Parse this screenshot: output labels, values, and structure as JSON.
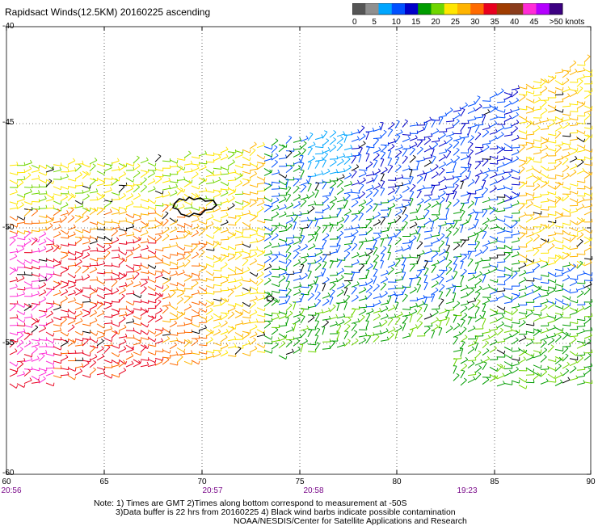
{
  "title": "Rapidsact Winds(12.5KM) 20160225 ascending",
  "colorbar": {
    "colors": [
      "#555555",
      "#8f8f8f",
      "#00a6ff",
      "#0050ff",
      "#0000c8",
      "#009c00",
      "#6fd600",
      "#ffe600",
      "#ffb400",
      "#ff6a00",
      "#e8001e",
      "#a03c00",
      "#8a3c1c",
      "#ff2cd6",
      "#b400ff",
      "#3c0082"
    ],
    "labels": [
      "0",
      "5",
      "10",
      "15",
      "20",
      "25",
      "30",
      "35",
      "40",
      "45",
      ">50 knots"
    ]
  },
  "axes": {
    "x_ticks": [
      "60",
      "65",
      "70",
      "75",
      "80",
      "85",
      "90"
    ],
    "y_ticks": [
      "-40",
      "-45",
      "-50",
      "-55",
      "-60"
    ],
    "time_labels": [
      "20:56",
      "20:57",
      "20:58",
      "19:23"
    ]
  },
  "notes": {
    "line1": "Note: 1) Times are GMT 2)Times along bottom correspond to measurement at -50S",
    "line2": "3)Data buffer is 22 hrs from 20160225 4) Black wind barbs indicate possible contamination",
    "credit": "NOAA/NESDIS/Center for Satellite Applications and Research"
  }
}
